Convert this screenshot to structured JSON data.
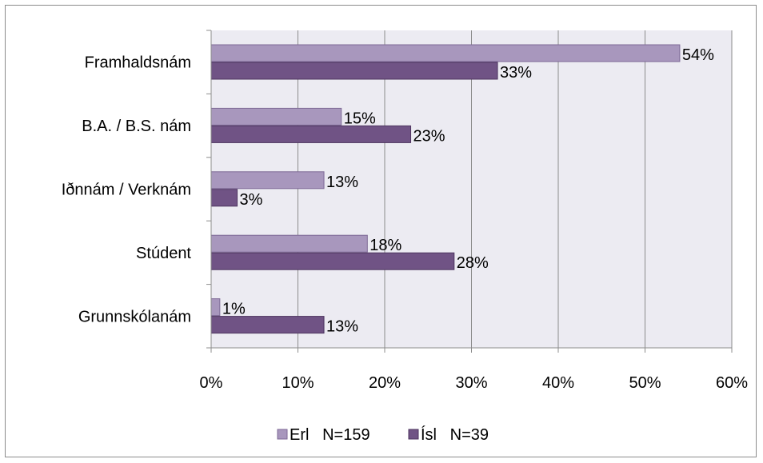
{
  "chart_data": {
    "type": "bar",
    "orientation": "horizontal",
    "categories": [
      "Framhaldsnám",
      "B.A. / B.S. nám",
      "Iðnnám / Verknám",
      "Stúdent",
      "Grunnskólanám"
    ],
    "series": [
      {
        "name": "Erl   N=159",
        "values": [
          54,
          15,
          13,
          18,
          1
        ],
        "color": "#a897bd"
      },
      {
        "name": "Ísl   N=39",
        "values": [
          33,
          23,
          3,
          28,
          13
        ],
        "color": "#705385"
      }
    ],
    "data_labels": [
      [
        "54%",
        "15%",
        "13%",
        "18%",
        "1%"
      ],
      [
        "33%",
        "23%",
        "3%",
        "28%",
        "13%"
      ]
    ],
    "xlim": [
      0,
      60
    ],
    "xticks": [
      0,
      10,
      20,
      30,
      40,
      50,
      60
    ],
    "xtick_labels": [
      "0%",
      "10%",
      "20%",
      "30%",
      "40%",
      "50%",
      "60%"
    ],
    "grid": true,
    "plot_background": "#ecebf2",
    "legend_position": "bottom-center"
  }
}
